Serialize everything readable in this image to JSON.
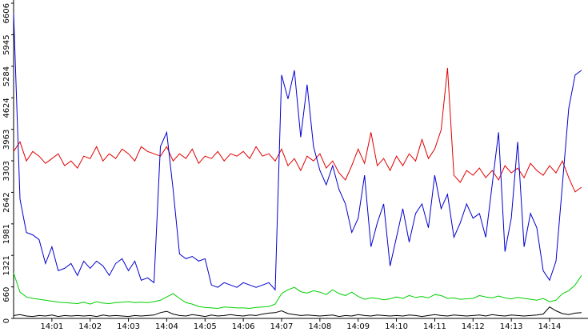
{
  "chart_data": {
    "type": "line",
    "categories": [
      null,
      null,
      null,
      null,
      null,
      null,
      "14:01",
      null,
      null,
      null,
      null,
      null,
      "14:02",
      null,
      null,
      null,
      null,
      null,
      "14:03",
      null,
      null,
      null,
      null,
      null,
      "14:04",
      null,
      null,
      null,
      null,
      null,
      "14:05",
      null,
      null,
      null,
      null,
      null,
      "14:06",
      null,
      null,
      null,
      null,
      null,
      "14:07",
      null,
      null,
      null,
      null,
      null,
      "14:08",
      null,
      null,
      null,
      null,
      null,
      "14:09",
      null,
      null,
      null,
      null,
      null,
      "14:10",
      null,
      null,
      null,
      null,
      null,
      "14:11",
      null,
      null,
      null,
      null,
      null,
      "14:12",
      null,
      null,
      null,
      null,
      null,
      "14:13",
      null,
      null,
      null,
      null,
      null,
      "14:14",
      null,
      null,
      null,
      null,
      null
    ],
    "ylim": [
      0,
      6606
    ],
    "yticks": [
      0,
      660,
      1321,
      1981,
      2642,
      3303,
      3963,
      4624,
      5284,
      5945,
      6606
    ],
    "series": [
      {
        "color": "#e00000",
        "values": [
          3500,
          3700,
          3300,
          3500,
          3400,
          3250,
          3350,
          3450,
          3200,
          3300,
          3150,
          3400,
          3350,
          3600,
          3300,
          3450,
          3350,
          3550,
          3450,
          3300,
          3600,
          3500,
          3450,
          3400,
          3600,
          3300,
          3450,
          3350,
          3550,
          3250,
          3400,
          3350,
          3500,
          3300,
          3450,
          3400,
          3500,
          3350,
          3600,
          3400,
          3450,
          3300,
          3550,
          3200,
          3350,
          3100,
          3400,
          3300,
          3450,
          3150,
          3300,
          3050,
          2900,
          3200,
          3550,
          3250,
          3900,
          3200,
          3350,
          3100,
          3400,
          3200,
          3450,
          3300,
          3750,
          3350,
          3550,
          3950,
          5250,
          3000,
          2850,
          3100,
          3000,
          3150,
          2950,
          3100,
          2900,
          3200,
          3050,
          3150,
          2950,
          3250,
          3100,
          3000,
          3200,
          3050,
          3300,
          2950,
          2650,
          2750
        ]
      },
      {
        "color": "#0000d0",
        "values": [
          6400,
          2500,
          1800,
          1750,
          1650,
          1150,
          1500,
          1000,
          1050,
          1150,
          900,
          1200,
          1050,
          1200,
          1100,
          900,
          1150,
          1250,
          1000,
          1200,
          800,
          850,
          750,
          3600,
          3900,
          2700,
          1350,
          1250,
          1300,
          1200,
          1250,
          700,
          650,
          750,
          700,
          650,
          750,
          700,
          650,
          700,
          750,
          600,
          5100,
          4600,
          5200,
          3800,
          4900,
          3600,
          3100,
          2800,
          3200,
          2700,
          2400,
          1800,
          2100,
          3000,
          1500,
          2000,
          2400,
          1100,
          1700,
          2300,
          1600,
          2200,
          2400,
          1900,
          3000,
          2300,
          2600,
          1700,
          2000,
          2400,
          2100,
          2200,
          1700,
          2800,
          3900,
          1400,
          2100,
          3700,
          1500,
          2200,
          1900,
          1000,
          800,
          1200,
          2800,
          4400,
          5100,
          5200
        ]
      },
      {
        "color": "#00d000",
        "values": [
          950,
          550,
          450,
          420,
          400,
          380,
          360,
          340,
          330,
          320,
          310,
          340,
          300,
          350,
          320,
          310,
          330,
          340,
          350,
          330,
          340,
          330,
          350,
          380,
          450,
          520,
          420,
          330,
          300,
          250,
          230,
          220,
          210,
          240,
          230,
          220,
          220,
          210,
          230,
          240,
          250,
          300,
          520,
          600,
          650,
          560,
          530,
          580,
          550,
          500,
          600,
          520,
          480,
          550,
          460,
          400,
          430,
          420,
          390,
          410,
          450,
          420,
          480,
          440,
          460,
          430,
          500,
          480,
          420,
          430,
          400,
          410,
          420,
          480,
          450,
          430,
          470,
          430,
          410,
          440,
          420,
          400,
          380,
          420,
          350,
          380,
          520,
          580,
          700,
          900
        ]
      },
      {
        "color": "#000000",
        "values": [
          60,
          80,
          50,
          40,
          60,
          50,
          70,
          40,
          60,
          50,
          60,
          50,
          60,
          40,
          70,
          50,
          60,
          50,
          40,
          60,
          50,
          60,
          70,
          120,
          150,
          90,
          60,
          50,
          80,
          60,
          40,
          70,
          50,
          60,
          80,
          60,
          50,
          70,
          60,
          90,
          110,
          120,
          160,
          100,
          80,
          60,
          70,
          60,
          50,
          60,
          70,
          40,
          60,
          50,
          80,
          60,
          50,
          70,
          60,
          50,
          60,
          50,
          70,
          60,
          40,
          60,
          80,
          60,
          50,
          70,
          60,
          50,
          60,
          70,
          50,
          80,
          60,
          50,
          70,
          60,
          50,
          60,
          70,
          90,
          240,
          160,
          100,
          80,
          110,
          120
        ]
      }
    ]
  }
}
